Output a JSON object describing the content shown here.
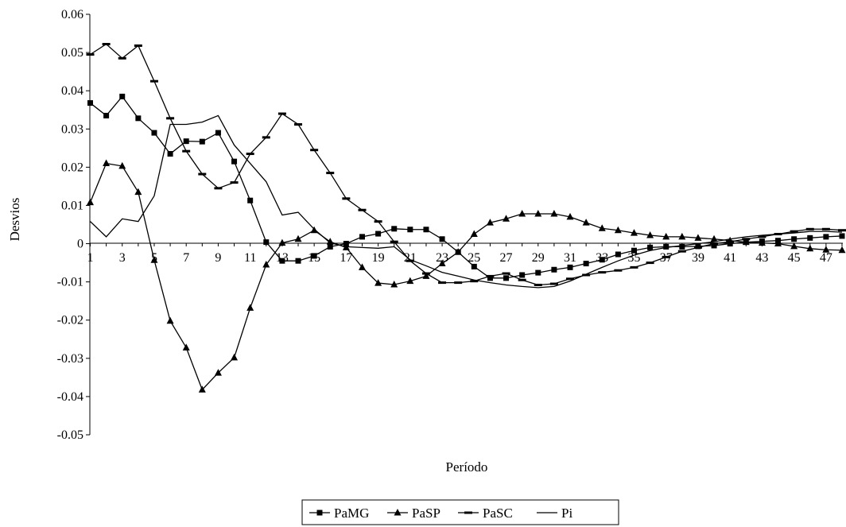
{
  "chart_data": {
    "type": "line",
    "title": "",
    "xlabel": "Período",
    "ylabel": "Desvios",
    "ylim": [
      -0.05,
      0.06
    ],
    "yticks": [
      0.06,
      0.05,
      0.04,
      0.03,
      0.02,
      0.01,
      0,
      -0.01,
      -0.02,
      -0.03,
      -0.04,
      -0.05
    ],
    "ytick_labels": [
      "0.06",
      "0.05",
      "0.04",
      "0.03",
      "0.02",
      "0.01",
      "0",
      "-0.01",
      "-0.02",
      "-0.03",
      "-0.04",
      "-0.05"
    ],
    "xlim": [
      1,
      48
    ],
    "xtick_labels": [
      "1",
      "3",
      "5",
      "7",
      "9",
      "11",
      "13",
      "15",
      "17",
      "19",
      "21",
      "23",
      "25",
      "27",
      "29",
      "31",
      "33",
      "35",
      "37",
      "39",
      "41",
      "43",
      "45",
      "47"
    ],
    "grid": false,
    "legend_position": "bottom",
    "color": "#000000",
    "series": [
      {
        "name": "PaMG",
        "marker": "square",
        "values": [
          0.0368,
          0.0335,
          0.0385,
          0.0328,
          0.029,
          0.0235,
          0.0268,
          0.0267,
          0.029,
          0.0215,
          0.0113,
          0.0004,
          -0.0045,
          -0.0045,
          -0.0032,
          -0.0008,
          0.0,
          0.0018,
          0.0026,
          0.0039,
          0.0037,
          0.0037,
          0.0012,
          -0.0022,
          -0.006,
          -0.009,
          -0.009,
          -0.0082,
          -0.0076,
          -0.0068,
          -0.0062,
          -0.0052,
          -0.0042,
          -0.0028,
          -0.0018,
          -0.001,
          -0.0008,
          -0.0008,
          -0.0007,
          -0.0005,
          0.0,
          0.0004,
          0.0006,
          0.0008,
          0.0012,
          0.0015,
          0.0018,
          0.002
        ]
      },
      {
        "name": "PaSP",
        "marker": "triangle",
        "values": [
          0.0108,
          0.021,
          0.0203,
          0.0135,
          -0.0043,
          -0.0202,
          -0.0272,
          -0.0382,
          -0.0338,
          -0.0298,
          -0.0168,
          -0.0055,
          0.0002,
          0.0012,
          0.0035,
          0.0005,
          -0.001,
          -0.0062,
          -0.0103,
          -0.0107,
          -0.0098,
          -0.0085,
          -0.0052,
          -0.0022,
          0.0025,
          0.0055,
          0.0065,
          0.0078,
          0.0078,
          0.0078,
          0.007,
          0.0055,
          0.004,
          0.0035,
          0.0028,
          0.0022,
          0.0018,
          0.0018,
          0.0015,
          0.0012,
          0.0008,
          0.0004,
          0.0002,
          0.0,
          -0.0007,
          -0.0013,
          -0.0016,
          -0.0017
        ]
      },
      {
        "name": "PaSC",
        "marker": "dash",
        "values": [
          0.0495,
          0.0522,
          0.0485,
          0.0518,
          0.0425,
          0.0328,
          0.0242,
          0.0182,
          0.0145,
          0.016,
          0.0235,
          0.0278,
          0.034,
          0.0312,
          0.0245,
          0.0185,
          0.0118,
          0.0088,
          0.0058,
          0.0005,
          -0.0045,
          -0.0078,
          -0.0102,
          -0.0102,
          -0.0098,
          -0.0085,
          -0.0078,
          -0.0095,
          -0.0108,
          -0.0105,
          -0.0092,
          -0.0082,
          -0.0075,
          -0.007,
          -0.0062,
          -0.005,
          -0.0035,
          -0.002,
          -0.001,
          0.0,
          0.0005,
          0.0012,
          0.0018,
          0.0025,
          0.0032,
          0.0038,
          0.0038,
          0.0035
        ]
      },
      {
        "name": "Pi",
        "marker": "none",
        "values": [
          0.0058,
          0.0018,
          0.0065,
          0.0058,
          0.0125,
          0.0312,
          0.0312,
          0.0318,
          0.0335,
          0.0258,
          0.021,
          0.0162,
          0.0075,
          0.0082,
          0.0038,
          0.0002,
          -0.0008,
          -0.001,
          -0.0012,
          -0.0008,
          -0.0042,
          -0.0058,
          -0.0075,
          -0.0085,
          -0.0095,
          -0.0102,
          -0.0108,
          -0.0112,
          -0.0115,
          -0.0112,
          -0.0098,
          -0.008,
          -0.0062,
          -0.0045,
          -0.003,
          -0.0018,
          -0.001,
          -0.0005,
          0.0,
          0.0005,
          0.0012,
          0.0018,
          0.0022,
          0.0025,
          0.0028,
          0.0032,
          0.0032,
          0.003
        ]
      }
    ]
  }
}
